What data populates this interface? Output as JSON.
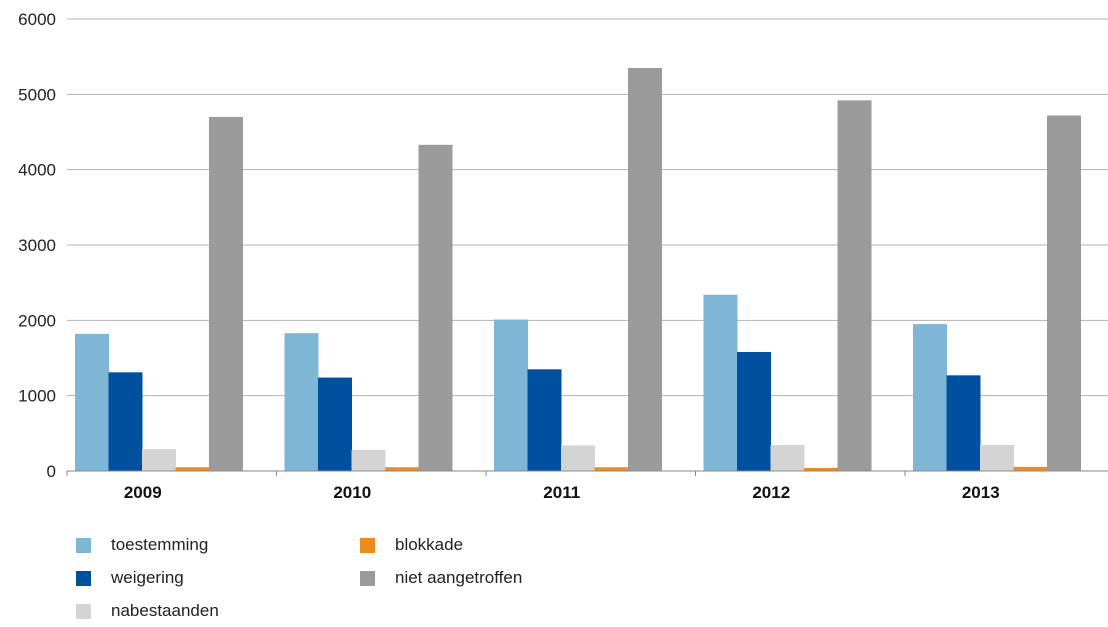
{
  "chart_data": {
    "type": "bar",
    "categories": [
      "2009",
      "2010",
      "2011",
      "2012",
      "2013"
    ],
    "series": [
      {
        "name": "toestemming",
        "color": "#7fb6d6",
        "values": [
          1820,
          1830,
          2010,
          2340,
          1950
        ]
      },
      {
        "name": "weigering",
        "color": "#0050a0",
        "values": [
          1310,
          1240,
          1350,
          1580,
          1270
        ]
      },
      {
        "name": "nabestaanden",
        "color": "#d4d4d4",
        "values": [
          290,
          280,
          340,
          345,
          345
        ]
      },
      {
        "name": "blokkade",
        "color": "#ef8a1e",
        "values": [
          50,
          50,
          50,
          40,
          55
        ]
      },
      {
        "name": "niet aangetroffen",
        "color": "#9b9b9b",
        "values": [
          4700,
          4330,
          5350,
          4920,
          4720
        ]
      }
    ],
    "y_ticks": [
      "0",
      "1000",
      "2000",
      "3000",
      "4000",
      "5000",
      "6000"
    ],
    "ylim": [
      0,
      6000
    ],
    "grid": true,
    "legend_position": "bottom-left",
    "title": "",
    "xlabel": "",
    "ylabel": ""
  }
}
